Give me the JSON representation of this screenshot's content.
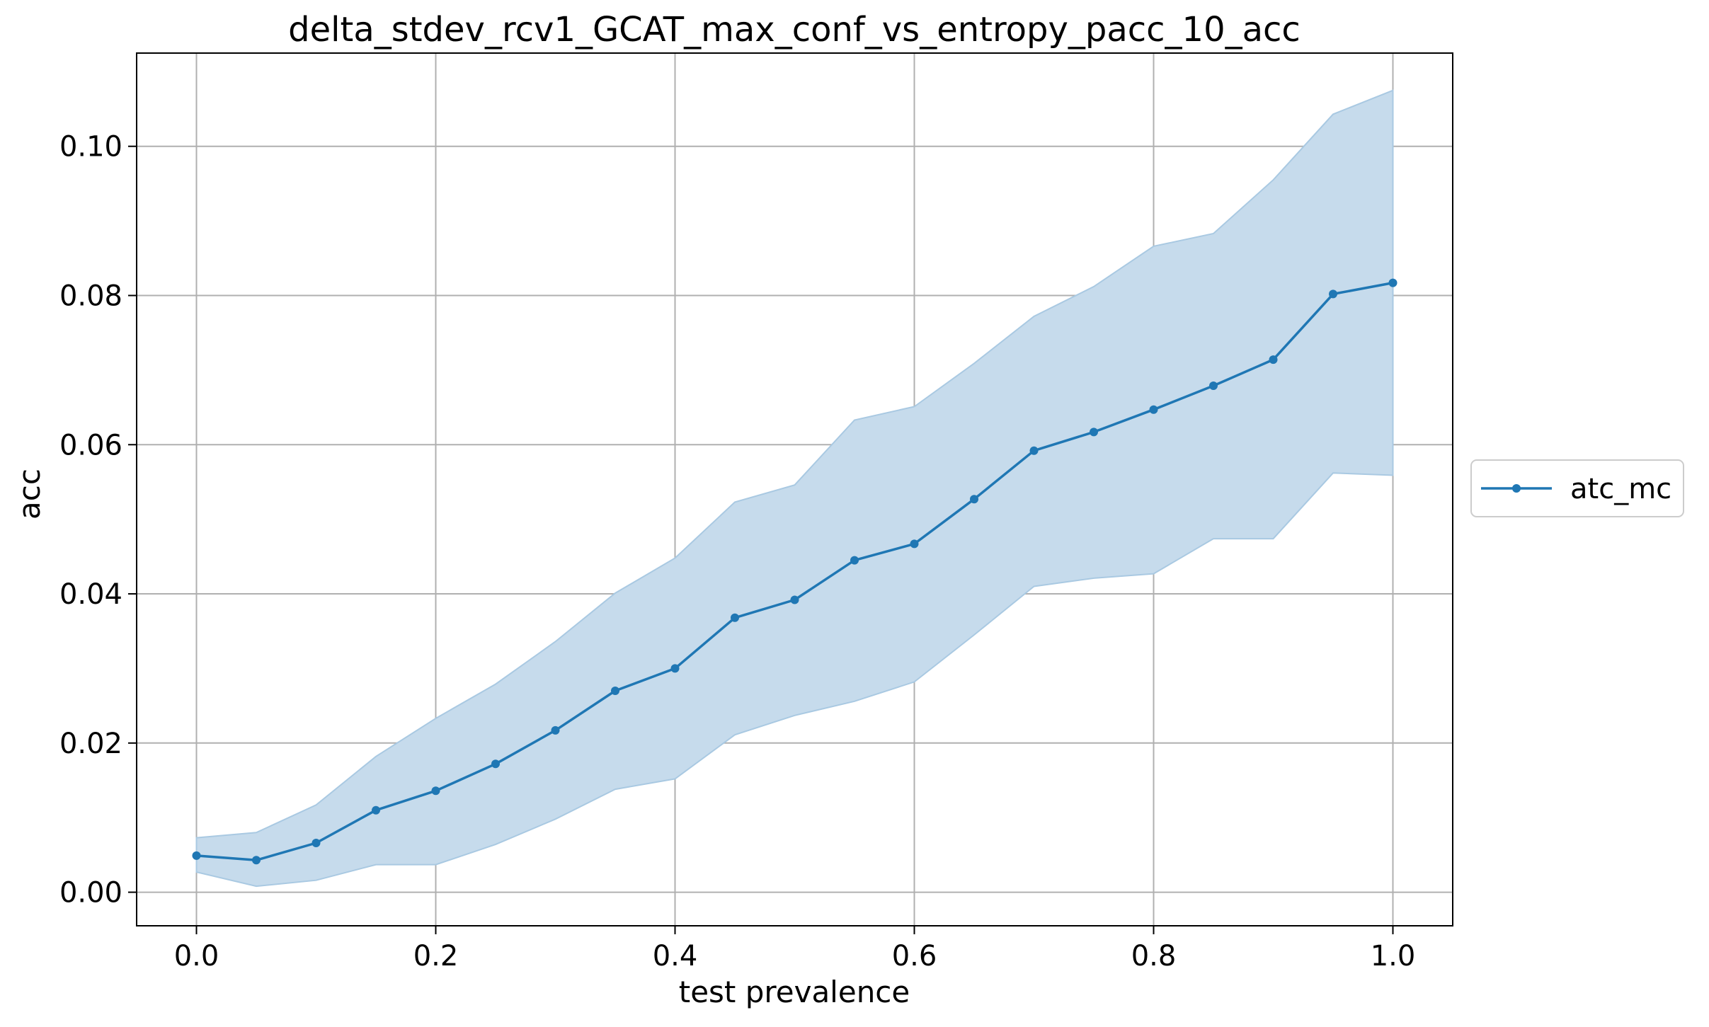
{
  "chart_data": {
    "type": "line",
    "title": "delta_stdev_rcv1_GCAT_max_conf_vs_entropy_pacc_10_acc",
    "xlabel": "test prevalence",
    "ylabel": "acc",
    "xlim": [
      -0.05,
      1.05
    ],
    "ylim": [
      -0.0045,
      0.1125
    ],
    "x_ticks": [
      0.0,
      0.2,
      0.4,
      0.6,
      0.8,
      1.0
    ],
    "x_tick_labels": [
      "0.0",
      "0.2",
      "0.4",
      "0.6",
      "0.8",
      "1.0"
    ],
    "y_ticks": [
      0.0,
      0.02,
      0.04,
      0.06,
      0.08,
      0.1
    ],
    "y_tick_labels": [
      "0.00",
      "0.02",
      "0.04",
      "0.06",
      "0.08",
      "0.10"
    ],
    "grid": true,
    "legend_position": "outside-right",
    "x": [
      0.0,
      0.05,
      0.1,
      0.15,
      0.2,
      0.25,
      0.3,
      0.35,
      0.4,
      0.45,
      0.5,
      0.55,
      0.6,
      0.65,
      0.7,
      0.75,
      0.8,
      0.85,
      0.9,
      0.95,
      1.0
    ],
    "series": [
      {
        "name": "atc_mc",
        "color": "#1f77b4",
        "band_color": "#c6dbec",
        "values": [
          0.0049,
          0.0043,
          0.0066,
          0.011,
          0.0136,
          0.0172,
          0.0217,
          0.027,
          0.03,
          0.0368,
          0.0392,
          0.0445,
          0.0467,
          0.0527,
          0.0592,
          0.0617,
          0.0647,
          0.0679,
          0.0714,
          0.0802,
          0.0817
        ],
        "band_upper": [
          0.0073,
          0.008,
          0.0117,
          0.0182,
          0.0233,
          0.0279,
          0.0336,
          0.0401,
          0.0448,
          0.0523,
          0.0546,
          0.0633,
          0.0651,
          0.0709,
          0.0772,
          0.0812,
          0.0866,
          0.0883,
          0.0955,
          0.1043,
          0.1075
        ],
        "band_lower": [
          0.0027,
          0.0008,
          0.0016,
          0.0037,
          0.0037,
          0.0064,
          0.0098,
          0.0138,
          0.0152,
          0.0211,
          0.0237,
          0.0256,
          0.0282,
          0.0345,
          0.041,
          0.0421,
          0.0427,
          0.0474,
          0.0474,
          0.0562,
          0.0559
        ]
      }
    ]
  }
}
